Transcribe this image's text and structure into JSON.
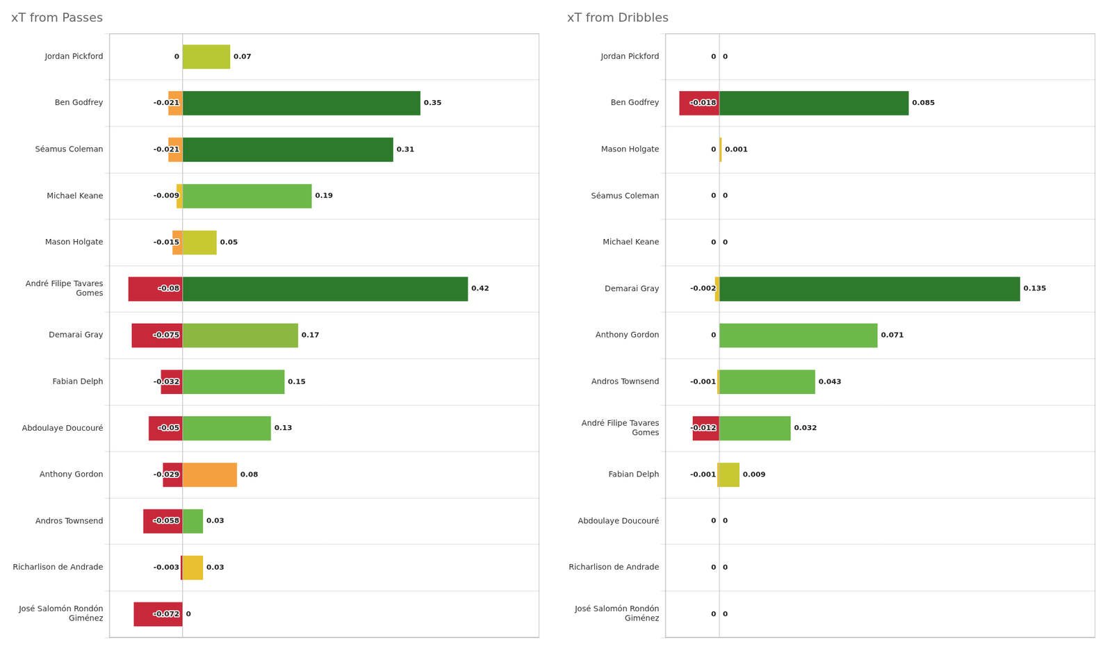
{
  "chart_data": [
    {
      "type": "bar",
      "title": "xT from Passes",
      "orientation": "horizontal",
      "stacked": true,
      "data_labels": true,
      "tick_labels": "y",
      "grid": true,
      "categories": [
        "Jordan Pickford",
        "Ben Godfrey",
        "Séamus Coleman",
        "Michael Keane",
        "Mason Holgate",
        "André Filipe Tavares\nGomes",
        "Demarai Gray",
        "Fabian Delph",
        "Abdoulaye Doucouré",
        "Anthony Gordon",
        "Andros Townsend",
        "Richarlison de Andrade",
        "José Salomón Rondón\nGiménez"
      ],
      "series": [
        {
          "values": [
            0,
            -0.021,
            -0.021,
            -0.009,
            -0.015,
            -0.08,
            -0.075,
            -0.032,
            -0.05,
            -0.029,
            -0.058,
            -0.003,
            -0.072
          ],
          "colors": [
            "#aaaaaa",
            "#f5a040",
            "#f5a040",
            "#e8c030",
            "#f5a040",
            "#c8293a",
            "#c8293a",
            "#c8293a",
            "#c8293a",
            "#c8293a",
            "#c8293a",
            "#c8293a",
            "#c8293a"
          ]
        },
        {
          "values": [
            0.07,
            0.35,
            0.31,
            0.19,
            0.05,
            0.42,
            0.17,
            0.15,
            0.13,
            0.08,
            0.03,
            0.03,
            0
          ],
          "colors": [
            "#b8c832",
            "#2d7a2d",
            "#2d7a2d",
            "#6db84a",
            "#c8c832",
            "#2d7a2d",
            "#8ab840",
            "#6db84a",
            "#6db84a",
            "#f5a040",
            "#6db84a",
            "#e8c030",
            "#aaaaaa"
          ]
        }
      ],
      "xlim": [
        -0.108,
        0.525
      ]
    },
    {
      "type": "bar",
      "title": "xT from Dribbles",
      "orientation": "horizontal",
      "stacked": true,
      "data_labels": true,
      "tick_labels": "y",
      "grid": true,
      "categories": [
        "Jordan Pickford",
        "Ben Godfrey",
        "Mason Holgate",
        "Séamus Coleman",
        "Michael Keane",
        "Demarai Gray",
        "Anthony Gordon",
        "Andros Townsend",
        "André Filipe Tavares\nGomes",
        "Fabian Delph",
        "Abdoulaye Doucouré",
        "Richarlison de Andrade",
        "José Salomón Rondón\nGiménez"
      ],
      "series": [
        {
          "values": [
            0,
            -0.018,
            0,
            0,
            0,
            -0.002,
            0,
            -0.001,
            -0.012,
            -0.001,
            0,
            0,
            0
          ],
          "colors": [
            "#aaaaaa",
            "#c8293a",
            "#aaaaaa",
            "#aaaaaa",
            "#aaaaaa",
            "#e8c030",
            "#aaaaaa",
            "#e8c030",
            "#c8293a",
            "#e8c030",
            "#aaaaaa",
            "#aaaaaa",
            "#aaaaaa"
          ]
        },
        {
          "values": [
            0,
            0.085,
            0.001,
            0,
            0,
            0.135,
            0.071,
            0.043,
            0.032,
            0.009,
            0,
            0,
            0
          ],
          "colors": [
            "#aaaaaa",
            "#2d7a2d",
            "#e8c030",
            "#aaaaaa",
            "#aaaaaa",
            "#2d7a2d",
            "#6db84a",
            "#6db84a",
            "#6db84a",
            "#c8c832",
            "#aaaaaa",
            "#aaaaaa",
            "#aaaaaa"
          ]
        }
      ],
      "xlim": [
        -0.024300000000000002,
        0.16875
      ]
    }
  ]
}
